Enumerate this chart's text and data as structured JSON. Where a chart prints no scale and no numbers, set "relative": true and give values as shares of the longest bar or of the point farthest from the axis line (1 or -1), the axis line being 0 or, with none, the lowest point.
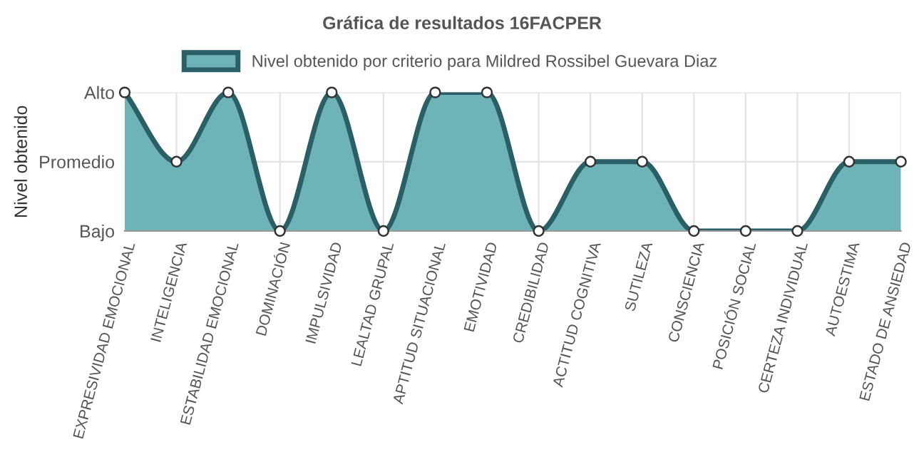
{
  "chart_data": {
    "type": "area",
    "title": "Gráfica de resultados 16FACPER",
    "ylabel": "Nivel obtenido",
    "categories": [
      "EXPRESIVIDAD EMOCIONAL",
      "INTELIGENCIA",
      "ESTABILIDAD EMOCIONAL",
      "DOMINACIÓN",
      "IMPULSIVIDAD",
      "LEALTAD GRUPAL",
      "APTITUD SITUACIONAL",
      "EMOTIVIDAD",
      "CREDIBILIDAD",
      "ACTITUD COGNITIVA",
      "SUTILEZA",
      "CONSCIENCIA",
      "POSICIÓN SOCIAL",
      "CERTEZA INDIVIDUAL",
      "AUTOESTIMA",
      "ESTADO DE ANSIEDAD"
    ],
    "series": [
      {
        "name": "Nivel obtenido por criterio para Mildred Rossibel Guevara Diaz",
        "color": "#2b5f66",
        "values": [
          1,
          0.5,
          1,
          0,
          1,
          0,
          1,
          1,
          0,
          0.5,
          0.5,
          0,
          0,
          0,
          0.5,
          0.5
        ]
      }
    ],
    "relative": true,
    "y_categories": [
      "Alto",
      "Promedio",
      "Bajo"
    ],
    "grid": true,
    "legend": "top",
    "marker": "circle",
    "line_style": "solid"
  }
}
